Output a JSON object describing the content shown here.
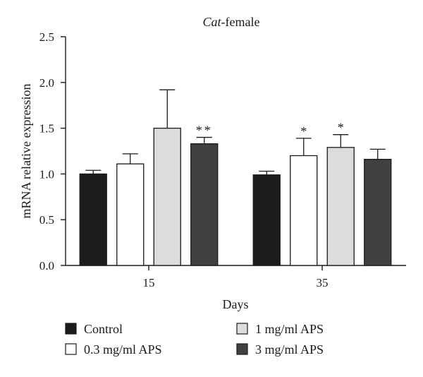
{
  "chart_data": {
    "type": "bar",
    "title_italic": "Cat",
    "title_rest": "-female",
    "xlabel": "Days",
    "ylabel": "mRNA relative expression",
    "ylim": [
      0,
      2.5
    ],
    "yticks": [
      "0.0",
      "0.5",
      "1.0",
      "1.5",
      "2.0",
      "2.5"
    ],
    "categories": [
      "15",
      "35"
    ],
    "grid": false,
    "legend_position": "bottom",
    "series": [
      {
        "name": "Control",
        "color": "#1c1c1c",
        "values": [
          1.0,
          0.99
        ],
        "errors": [
          0.04,
          0.04
        ],
        "significance": [
          "",
          ""
        ]
      },
      {
        "name": "0.3 mg/ml APS",
        "color": "#ffffff",
        "values": [
          1.11,
          1.2
        ],
        "errors": [
          0.11,
          0.19
        ],
        "significance": [
          "",
          "*"
        ]
      },
      {
        "name": "1 mg/ml APS",
        "color": "#dcdcdc",
        "values": [
          1.5,
          1.29
        ],
        "errors": [
          0.42,
          0.14
        ],
        "significance": [
          "",
          "*"
        ]
      },
      {
        "name": "3 mg/ml APS",
        "color": "#404040",
        "values": [
          1.33,
          1.16
        ],
        "errors": [
          0.07,
          0.11
        ],
        "significance": [
          "**",
          ""
        ]
      }
    ]
  }
}
